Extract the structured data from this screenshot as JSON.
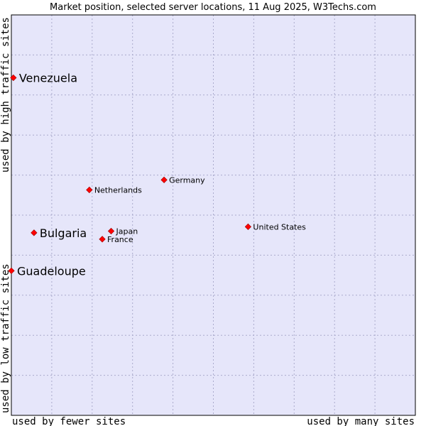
{
  "chart_data": {
    "type": "scatter",
    "title": "Market position, selected server locations, 11 Aug 2025, W3Techs.com",
    "xlabel_left": "used by fewer sites",
    "xlabel_right": "used by many sites",
    "ylabel_bottom": "used by low traffic sites",
    "ylabel_top": "used by high traffic sites",
    "xlim": [
      0,
      100
    ],
    "ylim": [
      0,
      100
    ],
    "grid": true,
    "colors": {
      "plot_background": "#e6e6fa",
      "grid": "#aaaacc",
      "border": "#000000",
      "marker": "#ff0000",
      "marker_outline": "#990000"
    },
    "points": [
      {
        "label": "Venezuela",
        "x": 0.5,
        "y": 84.3,
        "emphasis": true
      },
      {
        "label": "Germany",
        "x": 37.8,
        "y": 58.8,
        "emphasis": false
      },
      {
        "label": "Netherlands",
        "x": 19.3,
        "y": 56.3,
        "emphasis": false
      },
      {
        "label": "United States",
        "x": 58.6,
        "y": 47.1,
        "emphasis": false
      },
      {
        "label": "Japan",
        "x": 24.7,
        "y": 46.0,
        "emphasis": false
      },
      {
        "label": "Bulgaria",
        "x": 5.6,
        "y": 45.6,
        "emphasis": true
      },
      {
        "label": "France",
        "x": 22.5,
        "y": 44.0,
        "emphasis": false
      },
      {
        "label": "Guadeloupe",
        "x": 0.0,
        "y": 36.1,
        "emphasis": true
      }
    ]
  }
}
